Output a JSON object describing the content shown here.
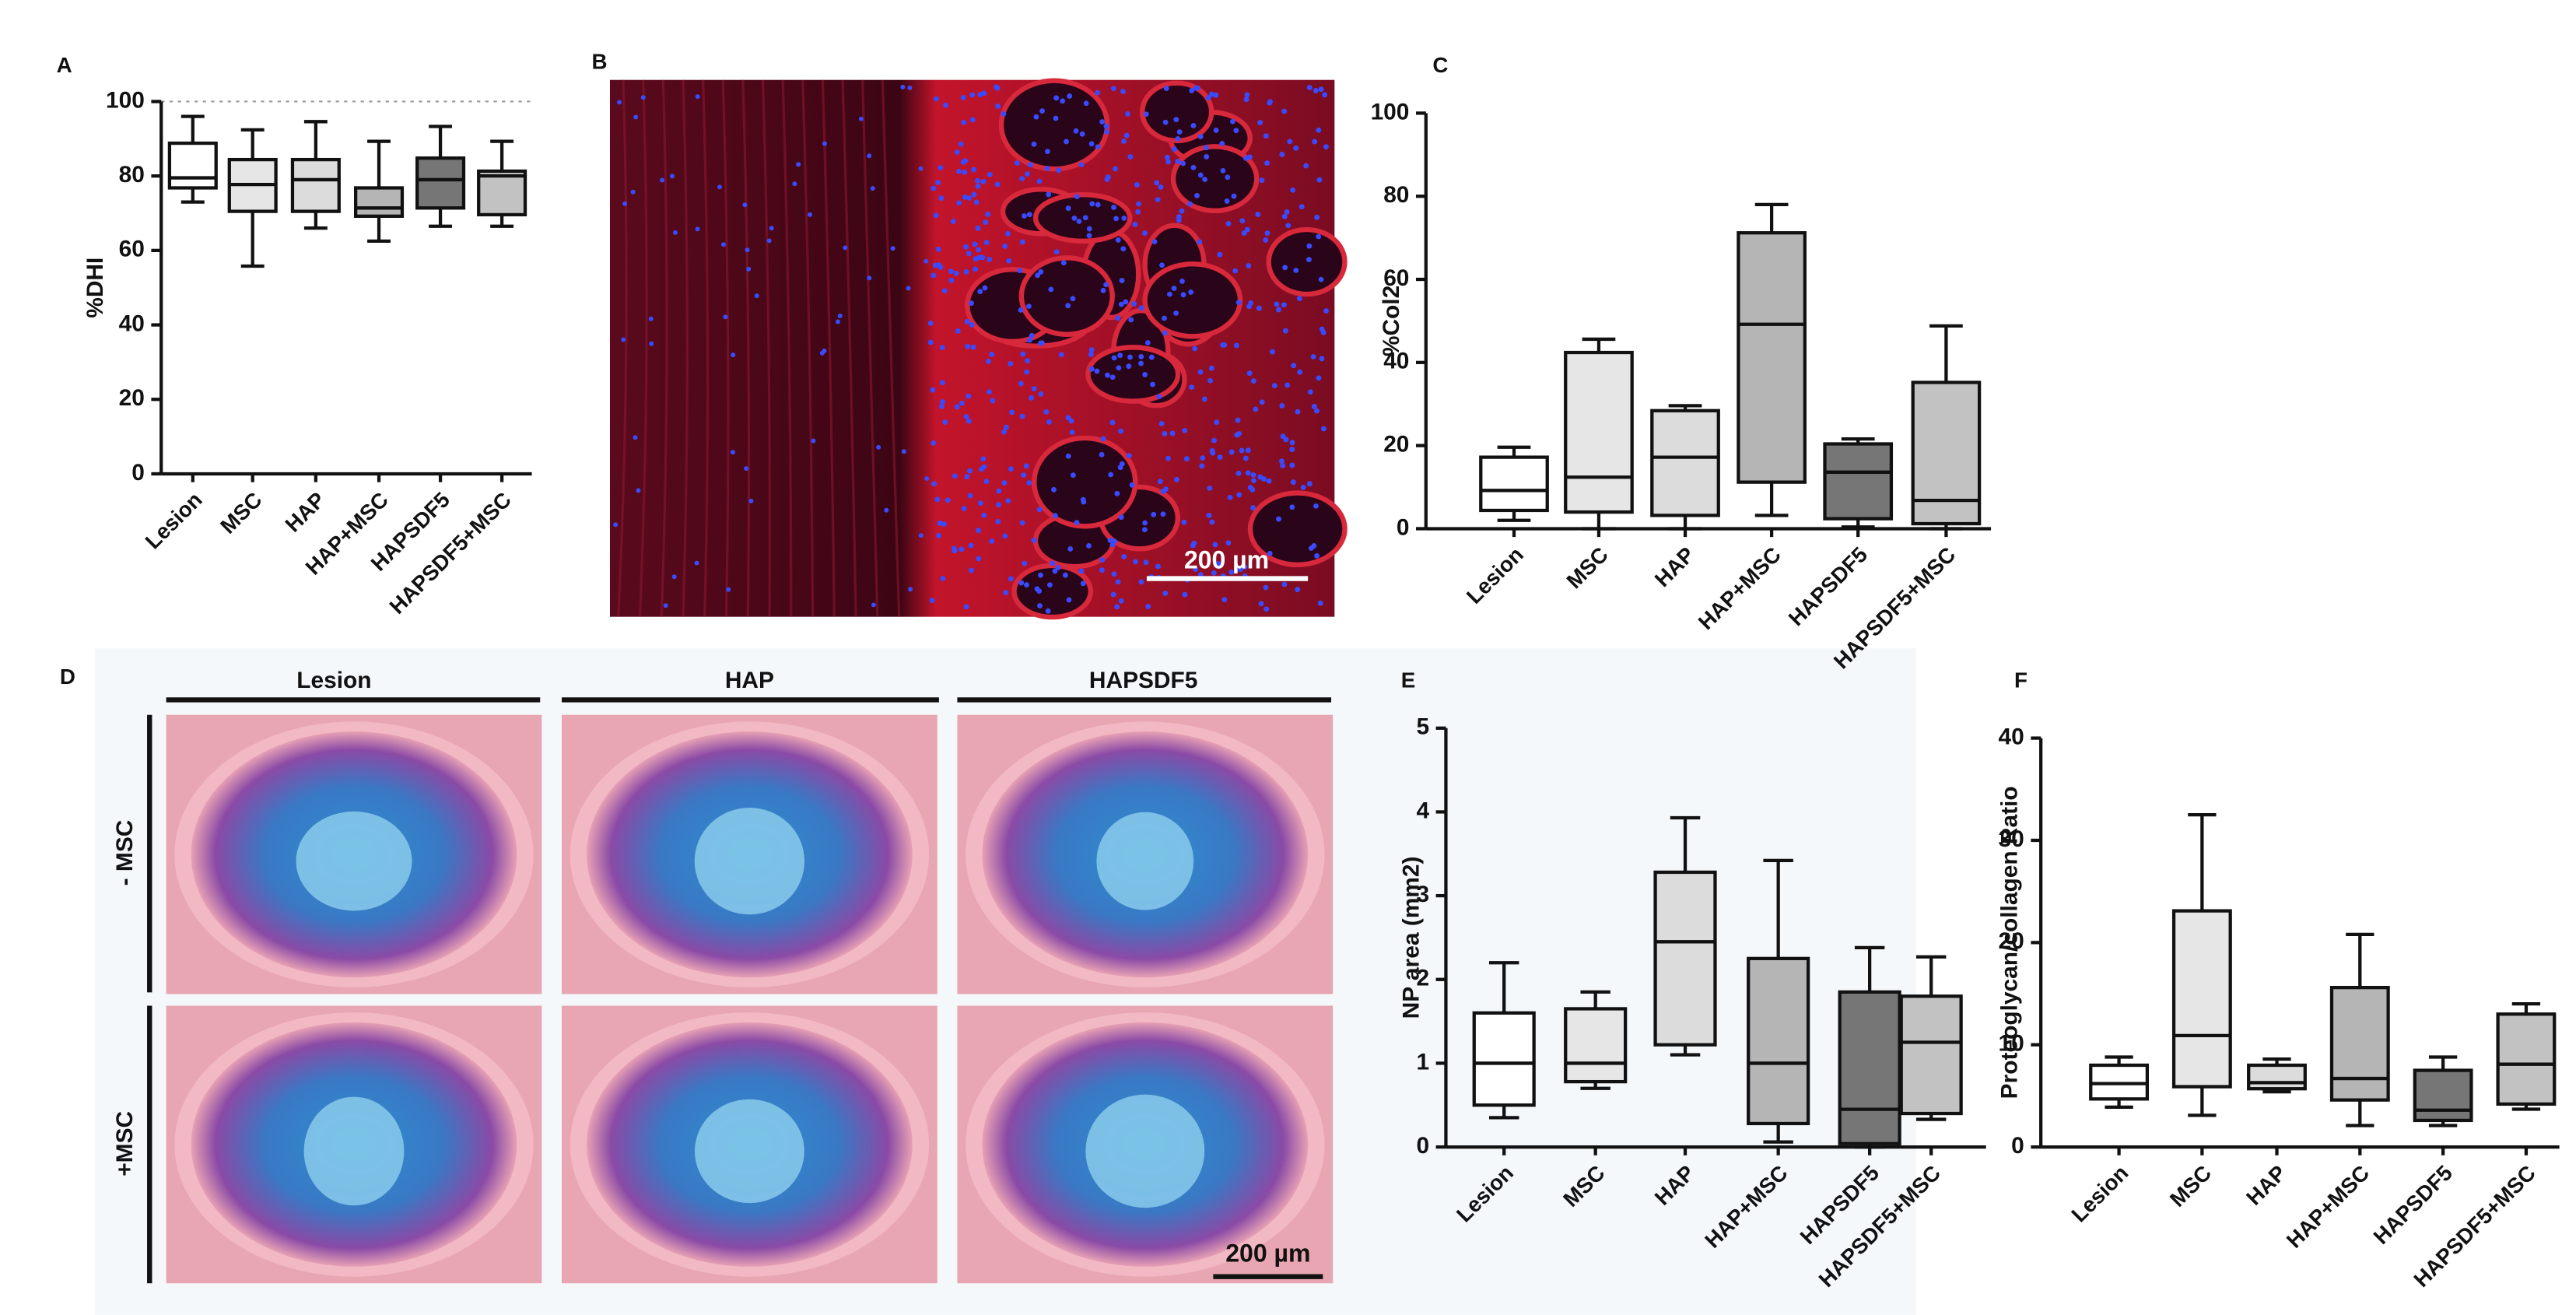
{
  "chart_data": [
    {
      "type": "box",
      "panel": "A",
      "y_label": "%DHI",
      "categories": [
        "Lesion",
        "MSC",
        "HAP",
        "HAP+MSC",
        "HAPSDF5",
        "HAPSDF5+MSC"
      ],
      "colors": [
        "#ffffff",
        "#e6e6e6",
        "#dcdcdc",
        "#b5b5b5",
        "#767676",
        "#c2c2c2"
      ],
      "min": [
        73,
        55.8,
        66,
        62.5,
        66.5,
        66.5
      ],
      "q1": [
        76.8,
        70.5,
        70.5,
        69.2,
        71.4,
        69.6
      ],
      "median": [
        79.5,
        77.7,
        79,
        71.4,
        79,
        80
      ],
      "q3": [
        88.8,
        84.4,
        84.4,
        76.8,
        84.8,
        81.3
      ],
      "max": [
        96,
        92.4,
        94.6,
        89.3,
        93.3,
        89.3
      ],
      "ylim": [
        0,
        100
      ],
      "yticks": [
        0,
        20,
        40,
        60,
        80,
        100
      ],
      "reference_line": 100
    },
    {
      "type": "box",
      "panel": "C",
      "y_label": "%Col2",
      "categories": [
        "Lesion",
        "MSC",
        "HAP",
        "HAP+MSC",
        "HAPSDF5",
        "HAPSDF5+MSC"
      ],
      "colors": [
        "#ffffff",
        "#e6e6e6",
        "#dcdcdc",
        "#b5b5b5",
        "#767676",
        "#c2c2c2"
      ],
      "min": [
        2,
        0,
        0,
        3.2,
        0.4,
        0
      ],
      "q1": [
        4.4,
        4,
        3.2,
        11.2,
        2.4,
        1.2
      ],
      "median": [
        9.2,
        12.4,
        17.2,
        49.2,
        13.6,
        6.8
      ],
      "q3": [
        17.2,
        42.4,
        28.4,
        71.2,
        20.4,
        35.2
      ],
      "max": [
        19.6,
        45.6,
        29.6,
        78,
        21.6,
        48.8
      ],
      "ylim": [
        0,
        100
      ],
      "yticks": [
        0,
        20,
        40,
        60,
        80,
        100
      ]
    },
    {
      "type": "box",
      "panel": "E",
      "y_label": "NP area (mm2)",
      "categories": [
        "Lesion",
        "MSC",
        "HAP",
        "HAP+MSC",
        "HAPSDF5",
        "HAPSDF5+MSC"
      ],
      "colors": [
        "#ffffff",
        "#e6e6e6",
        "#dcdcdc",
        "#b5b5b5",
        "#767676",
        "#c2c2c2"
      ],
      "min": [
        0.35,
        0.7,
        1.1,
        0.06,
        0,
        0.33
      ],
      "q1": [
        0.5,
        0.78,
        1.22,
        0.28,
        0.04,
        0.4
      ],
      "median": [
        1.0,
        1.0,
        2.45,
        1.0,
        0.45,
        1.25
      ],
      "q3": [
        1.6,
        1.65,
        3.28,
        2.25,
        1.85,
        1.8
      ],
      "max": [
        2.2,
        1.85,
        3.93,
        3.42,
        2.38,
        2.27
      ],
      "ylim": [
        0,
        5
      ],
      "yticks": [
        0,
        1,
        2,
        3,
        4,
        5
      ]
    },
    {
      "type": "box",
      "panel": "F",
      "y_label": "Proteoglycan/collagen Ratio",
      "categories": [
        "Lesion",
        "MSC",
        "HAP",
        "HAP+MSC",
        "HAPSDF5",
        "HAPSDF5+MSC"
      ],
      "colors": [
        "#ffffff",
        "#e6e6e6",
        "#dcdcdc",
        "#b5b5b5",
        "#767676",
        "#c2c2c2"
      ],
      "min": [
        3.9,
        3.1,
        5.4,
        2.1,
        2.1,
        3.7
      ],
      "q1": [
        4.7,
        5.9,
        5.7,
        4.6,
        2.6,
        4.2
      ],
      "median": [
        6.2,
        10.9,
        6.3,
        6.7,
        3.6,
        8.1
      ],
      "q3": [
        8,
        23.1,
        8,
        15.6,
        7.5,
        13
      ],
      "max": [
        8.8,
        32.5,
        8.6,
        20.8,
        8.8,
        14
      ],
      "ylim": [
        0,
        40
      ],
      "yticks": [
        0,
        10,
        20,
        30,
        40
      ]
    }
  ],
  "images": [
    {
      "panel": "B",
      "scale_bar": "200 µm"
    },
    {
      "panel": "D",
      "columns": [
        "Lesion",
        "HAP",
        "HAPSDF5"
      ],
      "rows": [
        "- MSC",
        "+MSC"
      ],
      "scale_bar": "200 µm"
    }
  ]
}
